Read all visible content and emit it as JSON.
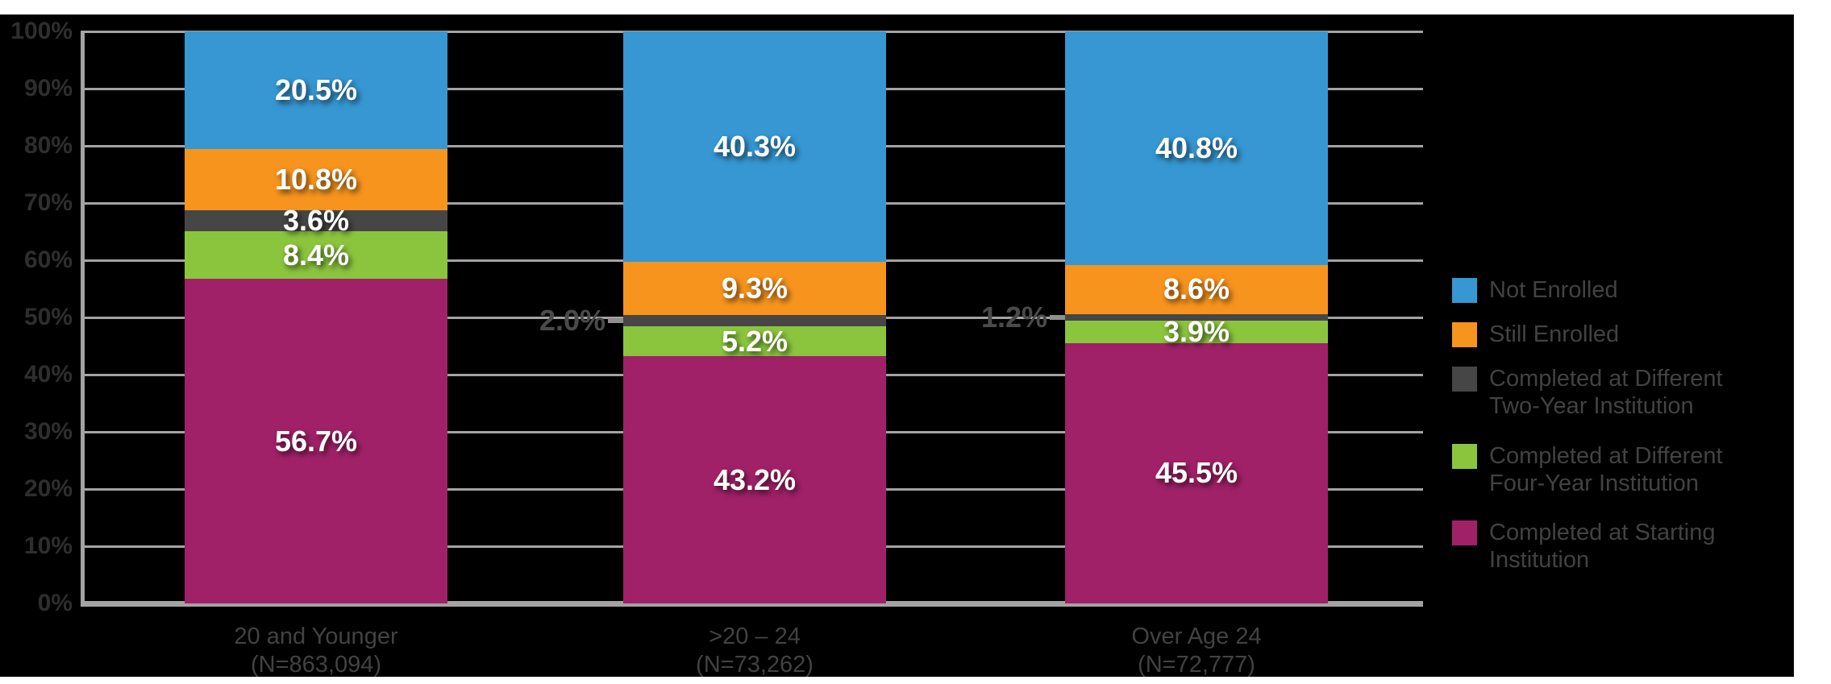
{
  "colors": {
    "page_background": "#FFFFFF",
    "panel_background": "#000000",
    "gridline": "#A3A3A3",
    "tick_text": "#2E2E2E",
    "label_text": "#424242",
    "bar_value_text": "#FFFFFF",
    "outside_value_text": "#4A4A4A",
    "leader_line": "#8F8F8F"
  },
  "chart_data": {
    "type": "bar",
    "stacked": true,
    "percent_stacked": true,
    "units": "%",
    "grid": true,
    "categories": [
      "20 and Younger",
      ">20 – 24",
      "Over Age 24"
    ],
    "category_sublabels": [
      "(N=863,094)",
      "(N=73,262)",
      "(N=72,777)"
    ],
    "series": [
      {
        "name": "Not Enrolled",
        "color": "#3697D2",
        "values": [
          20.5,
          40.3,
          40.8
        ]
      },
      {
        "name": "Still Enrolled",
        "color": "#F7941E",
        "values": [
          10.8,
          9.3,
          8.6
        ]
      },
      {
        "name": "Completed at Different Two-Year Institution",
        "color": "#464646",
        "values": [
          3.6,
          2.0,
          1.2
        ]
      },
      {
        "name": "Completed at Different Four-Year Institution",
        "color": "#8BC53E",
        "values": [
          8.4,
          5.2,
          3.9
        ]
      },
      {
        "name": "Completed at Starting Institution",
        "color": "#A02168",
        "values": [
          56.7,
          43.2,
          45.5
        ]
      }
    ],
    "value_labels": [
      [
        "20.5%",
        "40.3%",
        "40.8%"
      ],
      [
        "10.8%",
        "9.3%",
        "8.6%"
      ],
      [
        "3.6%",
        "2.0%",
        "1.2%"
      ],
      [
        "8.4%",
        "5.2%",
        "3.9%"
      ],
      [
        "56.7%",
        "43.2%",
        "45.5%"
      ]
    ],
    "outside_labels": [
      {
        "category_index": 1,
        "series_index": 2,
        "text": "2.0%"
      },
      {
        "category_index": 2,
        "series_index": 2,
        "text": "1.2%"
      }
    ],
    "y_axis": {
      "min": 0,
      "max": 100,
      "step": 10,
      "tick_labels": [
        "0%",
        "10%",
        "20%",
        "30%",
        "40%",
        "50%",
        "60%",
        "70%",
        "80%",
        "90%",
        "100%"
      ]
    },
    "xlabel": "",
    "ylabel": "",
    "legend": {
      "position": "right",
      "entries": [
        {
          "label": "Not Enrolled",
          "lines": [
            "Not Enrolled"
          ],
          "color": "#3697D2"
        },
        {
          "label": "Still Enrolled",
          "lines": [
            "Still Enrolled"
          ],
          "color": "#F7941E"
        },
        {
          "label": "Completed at Different Two-Year Institution",
          "lines": [
            "Completed at Different",
            "Two-Year Institution"
          ],
          "color": "#464646"
        },
        {
          "label": "Completed at Different Four-Year Institution",
          "lines": [
            "Completed at Different",
            "Four-Year Institution"
          ],
          "color": "#8BC53E"
        },
        {
          "label": "Completed at Starting Institution",
          "lines": [
            "Completed at Starting",
            "Institution"
          ],
          "color": "#A02168"
        }
      ]
    }
  }
}
